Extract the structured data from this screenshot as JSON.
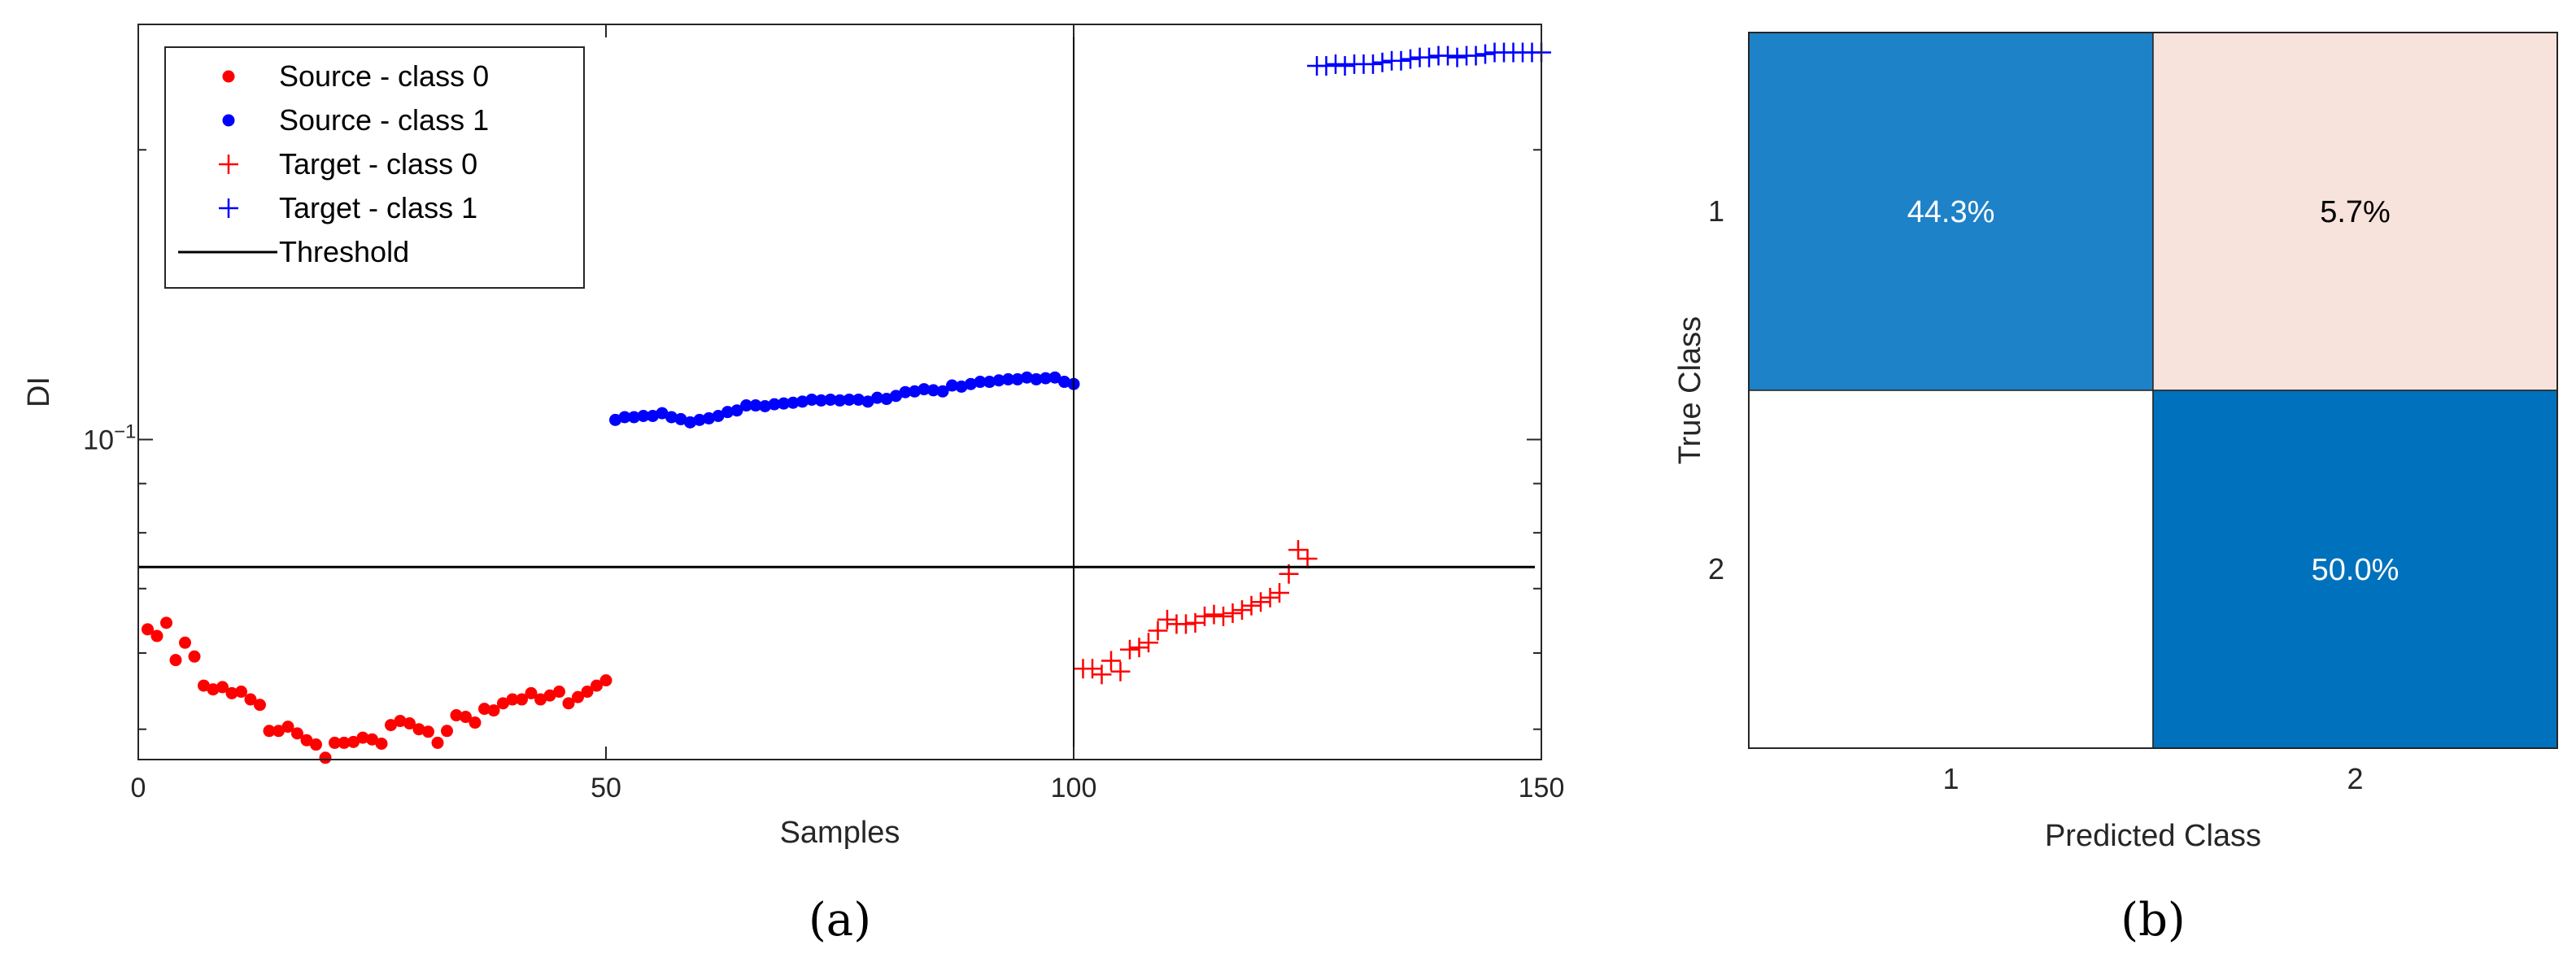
{
  "chart_data": [
    {
      "panel_label": "(a)",
      "type": "scatter",
      "xlabel": "Samples",
      "ylabel": "DI",
      "xlim": [
        0,
        150
      ],
      "ylim": [
        0.0465,
        0.27
      ],
      "yscale": "log",
      "xticks": [
        0,
        50,
        100,
        150
      ],
      "xtick_labels": [
        "0",
        "50",
        "100",
        "150"
      ],
      "yticks": [
        0.1
      ],
      "ytick_labels": [
        "10",
        "−1"
      ],
      "grid": false,
      "legend_position": "top-left",
      "threshold": {
        "name": "Threshold",
        "value": 0.0737,
        "color": "#000000"
      },
      "divider_x": 100,
      "series": [
        {
          "name": "Source - class 0",
          "marker": "dot",
          "color": "#ff0000",
          "x": [
            1,
            2,
            3,
            4,
            5,
            6,
            7,
            8,
            9,
            10,
            11,
            12,
            13,
            14,
            15,
            16,
            17,
            18,
            19,
            20,
            21,
            22,
            23,
            24,
            25,
            26,
            27,
            28,
            29,
            30,
            31,
            32,
            33,
            34,
            35,
            36,
            37,
            38,
            39,
            40,
            41,
            42,
            43,
            44,
            45,
            46,
            47,
            48,
            49,
            50
          ],
          "y": [
            0.0635,
            0.0625,
            0.0645,
            0.059,
            0.0615,
            0.0595,
            0.0555,
            0.055,
            0.0553,
            0.0545,
            0.0547,
            0.0537,
            0.053,
            0.0498,
            0.0498,
            0.0503,
            0.0495,
            0.0487,
            0.0482,
            0.0467,
            0.0484,
            0.0484,
            0.0485,
            0.049,
            0.0488,
            0.0483,
            0.0505,
            0.051,
            0.0507,
            0.05,
            0.0497,
            0.0484,
            0.0498,
            0.0517,
            0.0515,
            0.0508,
            0.0525,
            0.0523,
            0.0532,
            0.0537,
            0.0537,
            0.0545,
            0.0537,
            0.0542,
            0.0547,
            0.0532,
            0.054,
            0.0547,
            0.0555,
            0.0562
          ]
        },
        {
          "name": "Source - class 1",
          "marker": "dot",
          "color": "#0000ff",
          "x": [
            51,
            52,
            53,
            54,
            55,
            56,
            57,
            58,
            59,
            60,
            61,
            62,
            63,
            64,
            65,
            66,
            67,
            68,
            69,
            70,
            71,
            72,
            73,
            74,
            75,
            76,
            77,
            78,
            79,
            80,
            81,
            82,
            83,
            84,
            85,
            86,
            87,
            88,
            89,
            90,
            91,
            92,
            93,
            94,
            95,
            96,
            97,
            98,
            99,
            100
          ],
          "y": [
            0.1048,
            0.1055,
            0.1055,
            0.1058,
            0.1058,
            0.1065,
            0.1055,
            0.105,
            0.1042,
            0.1048,
            0.1052,
            0.1058,
            0.1068,
            0.1072,
            0.1085,
            0.1085,
            0.1083,
            0.1088,
            0.109,
            0.1092,
            0.1095,
            0.11,
            0.1098,
            0.11,
            0.1098,
            0.11,
            0.11,
            0.1095,
            0.1105,
            0.1102,
            0.111,
            0.112,
            0.1122,
            0.1128,
            0.1125,
            0.1122,
            0.1138,
            0.1135,
            0.1142,
            0.1148,
            0.1148,
            0.1152,
            0.1155,
            0.1155,
            0.116,
            0.1155,
            0.1158,
            0.116,
            0.1148,
            0.1142
          ]
        },
        {
          "name": "Target - class 0",
          "marker": "plus",
          "color": "#ff0000",
          "x": [
            101,
            102,
            103,
            104,
            105,
            106,
            107,
            108,
            109,
            110,
            111,
            112,
            113,
            114,
            115,
            116,
            117,
            118,
            119,
            120,
            121,
            122,
            123,
            124,
            125
          ],
          "y": [
            0.0578,
            0.0578,
            0.057,
            0.0589,
            0.0574,
            0.0605,
            0.0608,
            0.0615,
            0.0633,
            0.065,
            0.0643,
            0.0643,
            0.0645,
            0.0655,
            0.0658,
            0.0655,
            0.066,
            0.0665,
            0.0672,
            0.0678,
            0.0685,
            0.0693,
            0.0725,
            0.0768,
            0.0752
          ]
        },
        {
          "name": "Target - class 1",
          "marker": "plus",
          "color": "#0000ff",
          "x": [
            126,
            127,
            128,
            129,
            130,
            131,
            132,
            133,
            134,
            135,
            136,
            137,
            138,
            139,
            140,
            141,
            142,
            143,
            144,
            145,
            146,
            147,
            148,
            149,
            150
          ],
          "y": [
            0.2445,
            0.2445,
            0.2455,
            0.2445,
            0.2455,
            0.2455,
            0.2455,
            0.2465,
            0.2475,
            0.2475,
            0.2485,
            0.2495,
            0.2495,
            0.2505,
            0.2505,
            0.2495,
            0.2505,
            0.2505,
            0.2515,
            0.2525,
            0.2525,
            0.2525,
            0.2525,
            0.2525,
            0.2525
          ]
        }
      ]
    },
    {
      "panel_label": "(b)",
      "type": "heatmap",
      "xlabel": "Predicted Class",
      "ylabel": "True Class",
      "row_labels": [
        "1",
        "2"
      ],
      "col_labels": [
        "1",
        "2"
      ],
      "cells": [
        [
          {
            "text": "44.3%",
            "value": 44.3,
            "color": "#1d82c8",
            "text_color": "#ffffff"
          },
          {
            "text": "5.7%",
            "value": 5.7,
            "color": "#f7e3db",
            "text_color": "#000000"
          }
        ],
        [
          {
            "text": "",
            "value": 0,
            "color": "#ffffff",
            "text_color": "#000000"
          },
          {
            "text": "50.0%",
            "value": 50.0,
            "color": "#0072bd",
            "text_color": "#ffffff"
          }
        ]
      ]
    }
  ]
}
